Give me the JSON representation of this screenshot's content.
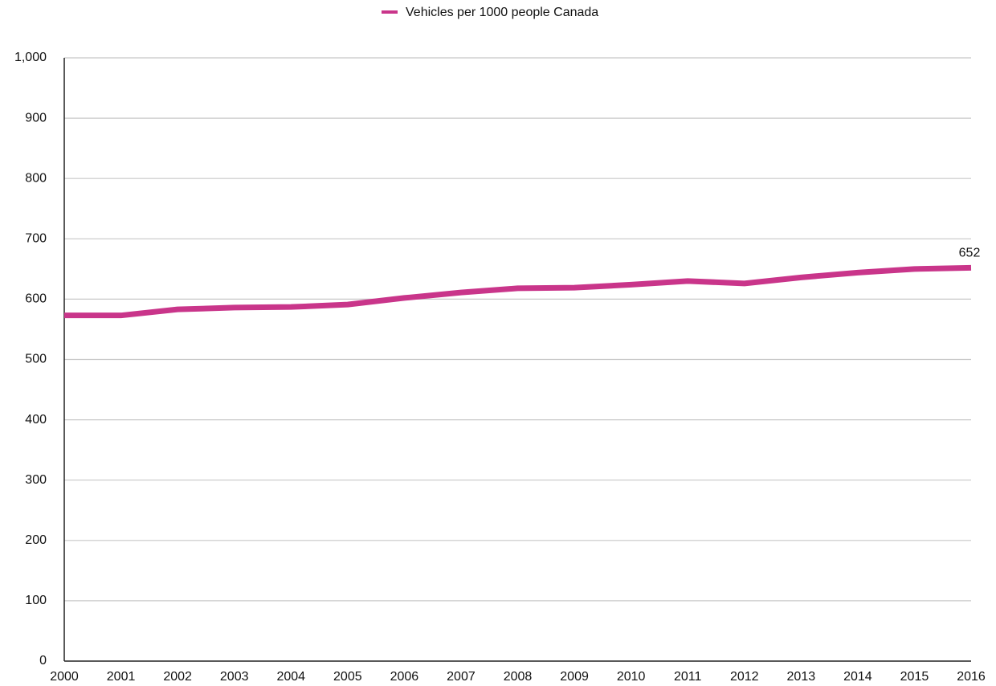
{
  "chart_data": {
    "type": "line",
    "x": [
      2000,
      2001,
      2002,
      2003,
      2004,
      2005,
      2006,
      2007,
      2008,
      2009,
      2010,
      2011,
      2012,
      2013,
      2014,
      2015,
      2016
    ],
    "series": [
      {
        "name": "Vehicles per 1000 people Canada",
        "color": "#c9358a",
        "values": [
          573,
          573,
          583,
          586,
          587,
          591,
          602,
          611,
          618,
          619,
          624,
          630,
          626,
          636,
          644,
          650,
          652
        ],
        "value_labels": [
          null,
          null,
          null,
          null,
          null,
          null,
          null,
          null,
          null,
          null,
          null,
          null,
          null,
          null,
          null,
          null,
          "652"
        ]
      }
    ],
    "xlim": [
      2000,
      2016
    ],
    "xticks": [
      2000,
      2001,
      2002,
      2003,
      2004,
      2005,
      2006,
      2007,
      2008,
      2009,
      2010,
      2011,
      2012,
      2013,
      2014,
      2015,
      2016
    ],
    "ylim": [
      0,
      1000
    ],
    "yticks": [
      0,
      100,
      200,
      300,
      400,
      500,
      600,
      700,
      800,
      900,
      {
        "value": 1000,
        "label": "1,000"
      }
    ],
    "grid": true,
    "legend": "top"
  }
}
